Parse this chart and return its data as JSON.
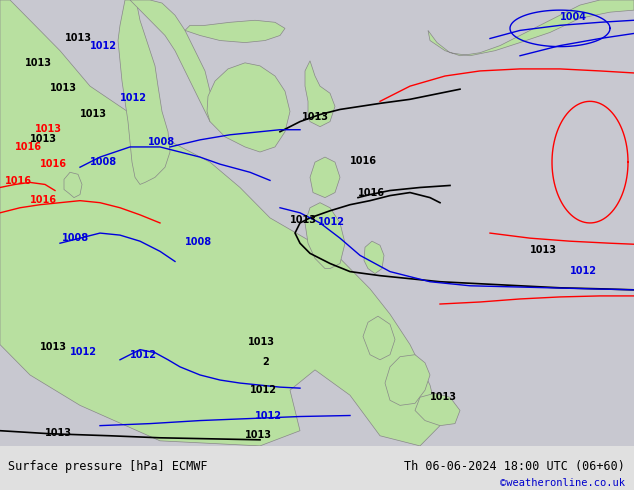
{
  "title_left": "Surface pressure [hPa] ECMWF",
  "title_right": "Th 06-06-2024 18:00 UTC (06+60)",
  "credit": "©weatheronline.co.uk",
  "credit_color": "#0000cc",
  "bg_color": "#d0d0d0",
  "land_color_high": "#aaddaa",
  "land_color_low": "#88cc88",
  "bottom_bar_color": "#e8e8e8",
  "bottom_text_color": "#000000",
  "fig_width": 6.34,
  "fig_height": 4.9,
  "dpi": 100
}
